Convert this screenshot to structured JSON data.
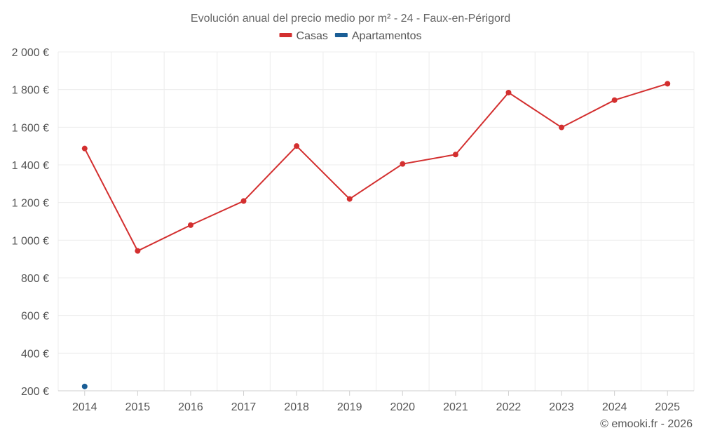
{
  "chart_data": {
    "type": "line",
    "title": "Evolución anual del precio medio por m² - 24 - Faux-en-Périgord",
    "categories": [
      "2014",
      "2015",
      "2016",
      "2017",
      "2018",
      "2019",
      "2020",
      "2021",
      "2022",
      "2023",
      "2024",
      "2025"
    ],
    "series": [
      {
        "name": "Casas",
        "color": "#d32f2f",
        "values": [
          1487,
          943,
          1080,
          1208,
          1500,
          1219,
          1405,
          1455,
          1784,
          1599,
          1744,
          1831
        ]
      },
      {
        "name": "Apartamentos",
        "color": "#1a5e96",
        "values": [
          223,
          null,
          null,
          null,
          null,
          null,
          null,
          null,
          null,
          null,
          null,
          null
        ]
      }
    ],
    "ylim": [
      200,
      2000
    ],
    "yticks": [
      200,
      400,
      600,
      800,
      1000,
      1200,
      1400,
      1600,
      1800,
      2000
    ],
    "ytick_labels": [
      "200 €",
      "400 €",
      "600 €",
      "800 €",
      "1 000 €",
      "1 200 €",
      "1 400 €",
      "1 600 €",
      "1 800 €",
      "2 000 €"
    ],
    "grid": true,
    "legend": "top-center",
    "xlabel": "",
    "ylabel": ""
  },
  "credit": "© emooki.fr - 2026"
}
